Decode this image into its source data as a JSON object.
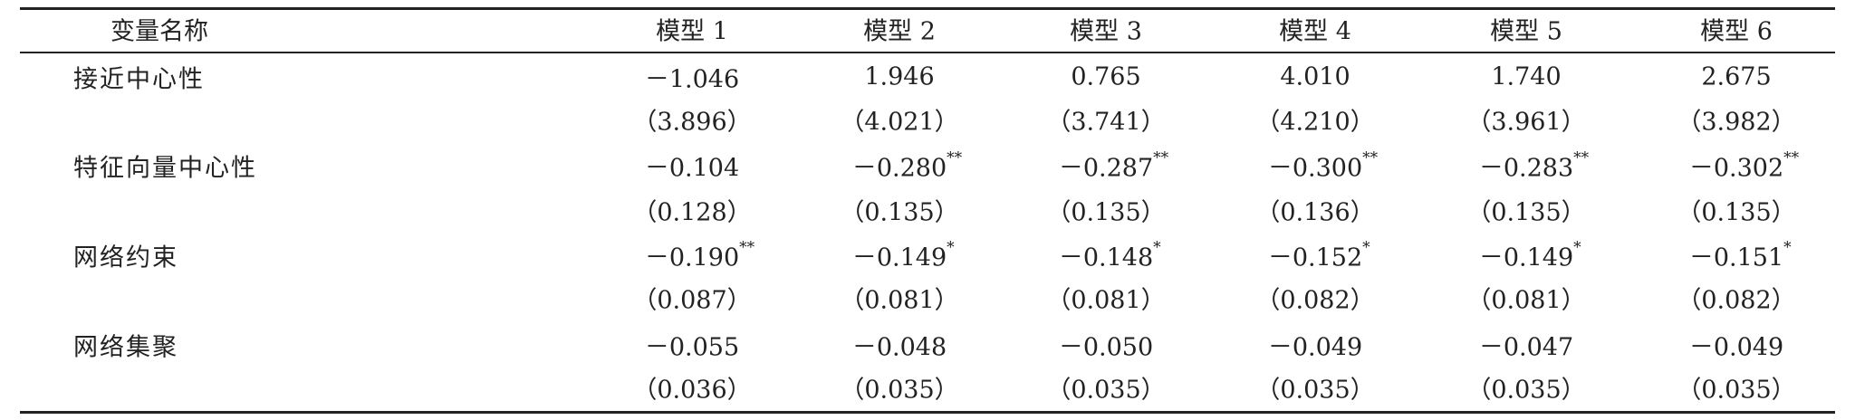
{
  "table": {
    "header": [
      "变量名称",
      "模型 1",
      "模型 2",
      "模型 3",
      "模型 4",
      "模型 5",
      "模型 6"
    ],
    "rows": [
      {
        "label": "接近中心性",
        "cells": [
          "－1.046",
          "1.946",
          "0.765",
          "4.010",
          "1.740",
          "2.675"
        ]
      },
      {
        "cells": [
          "（3.896）",
          "（4.021）",
          "（3.741）",
          "（4.210）",
          "（3.961）",
          "（3.982）"
        ]
      },
      {
        "label": "特征向量中心性",
        "cells": [
          "－0.104",
          {
            "value": "－0.280",
            "stars": "**"
          },
          {
            "value": "－0.287",
            "stars": "**"
          },
          {
            "value": "－0.300",
            "stars": "**"
          },
          {
            "value": "－0.283",
            "stars": "**"
          },
          {
            "value": "－0.302",
            "stars": "**"
          }
        ]
      },
      {
        "cells": [
          "（0.128）",
          "（0.135）",
          "（0.135）",
          "（0.136）",
          "（0.135）",
          "（0.135）"
        ]
      },
      {
        "label": "网络约束",
        "cells": [
          {
            "value": "－0.190",
            "stars": "**"
          },
          {
            "value": "－0.149",
            "stars": "*"
          },
          {
            "value": "－0.148",
            "stars": "*"
          },
          {
            "value": "－0.152",
            "stars": "*"
          },
          {
            "value": "－0.149",
            "stars": "*"
          },
          {
            "value": "－0.151",
            "stars": "*"
          }
        ]
      },
      {
        "cells": [
          "（0.087）",
          "（0.081）",
          "（0.081）",
          "（0.082）",
          "（0.081）",
          "（0.082）"
        ]
      },
      {
        "label": "网络集聚",
        "cells": [
          "－0.055",
          "－0.048",
          "－0.050",
          "－0.049",
          "－0.047",
          "－0.049"
        ]
      },
      {
        "cells": [
          "（0.036）",
          "（0.035）",
          "（0.035）",
          "（0.035）",
          "（0.035）",
          "（0.035）"
        ]
      }
    ]
  }
}
